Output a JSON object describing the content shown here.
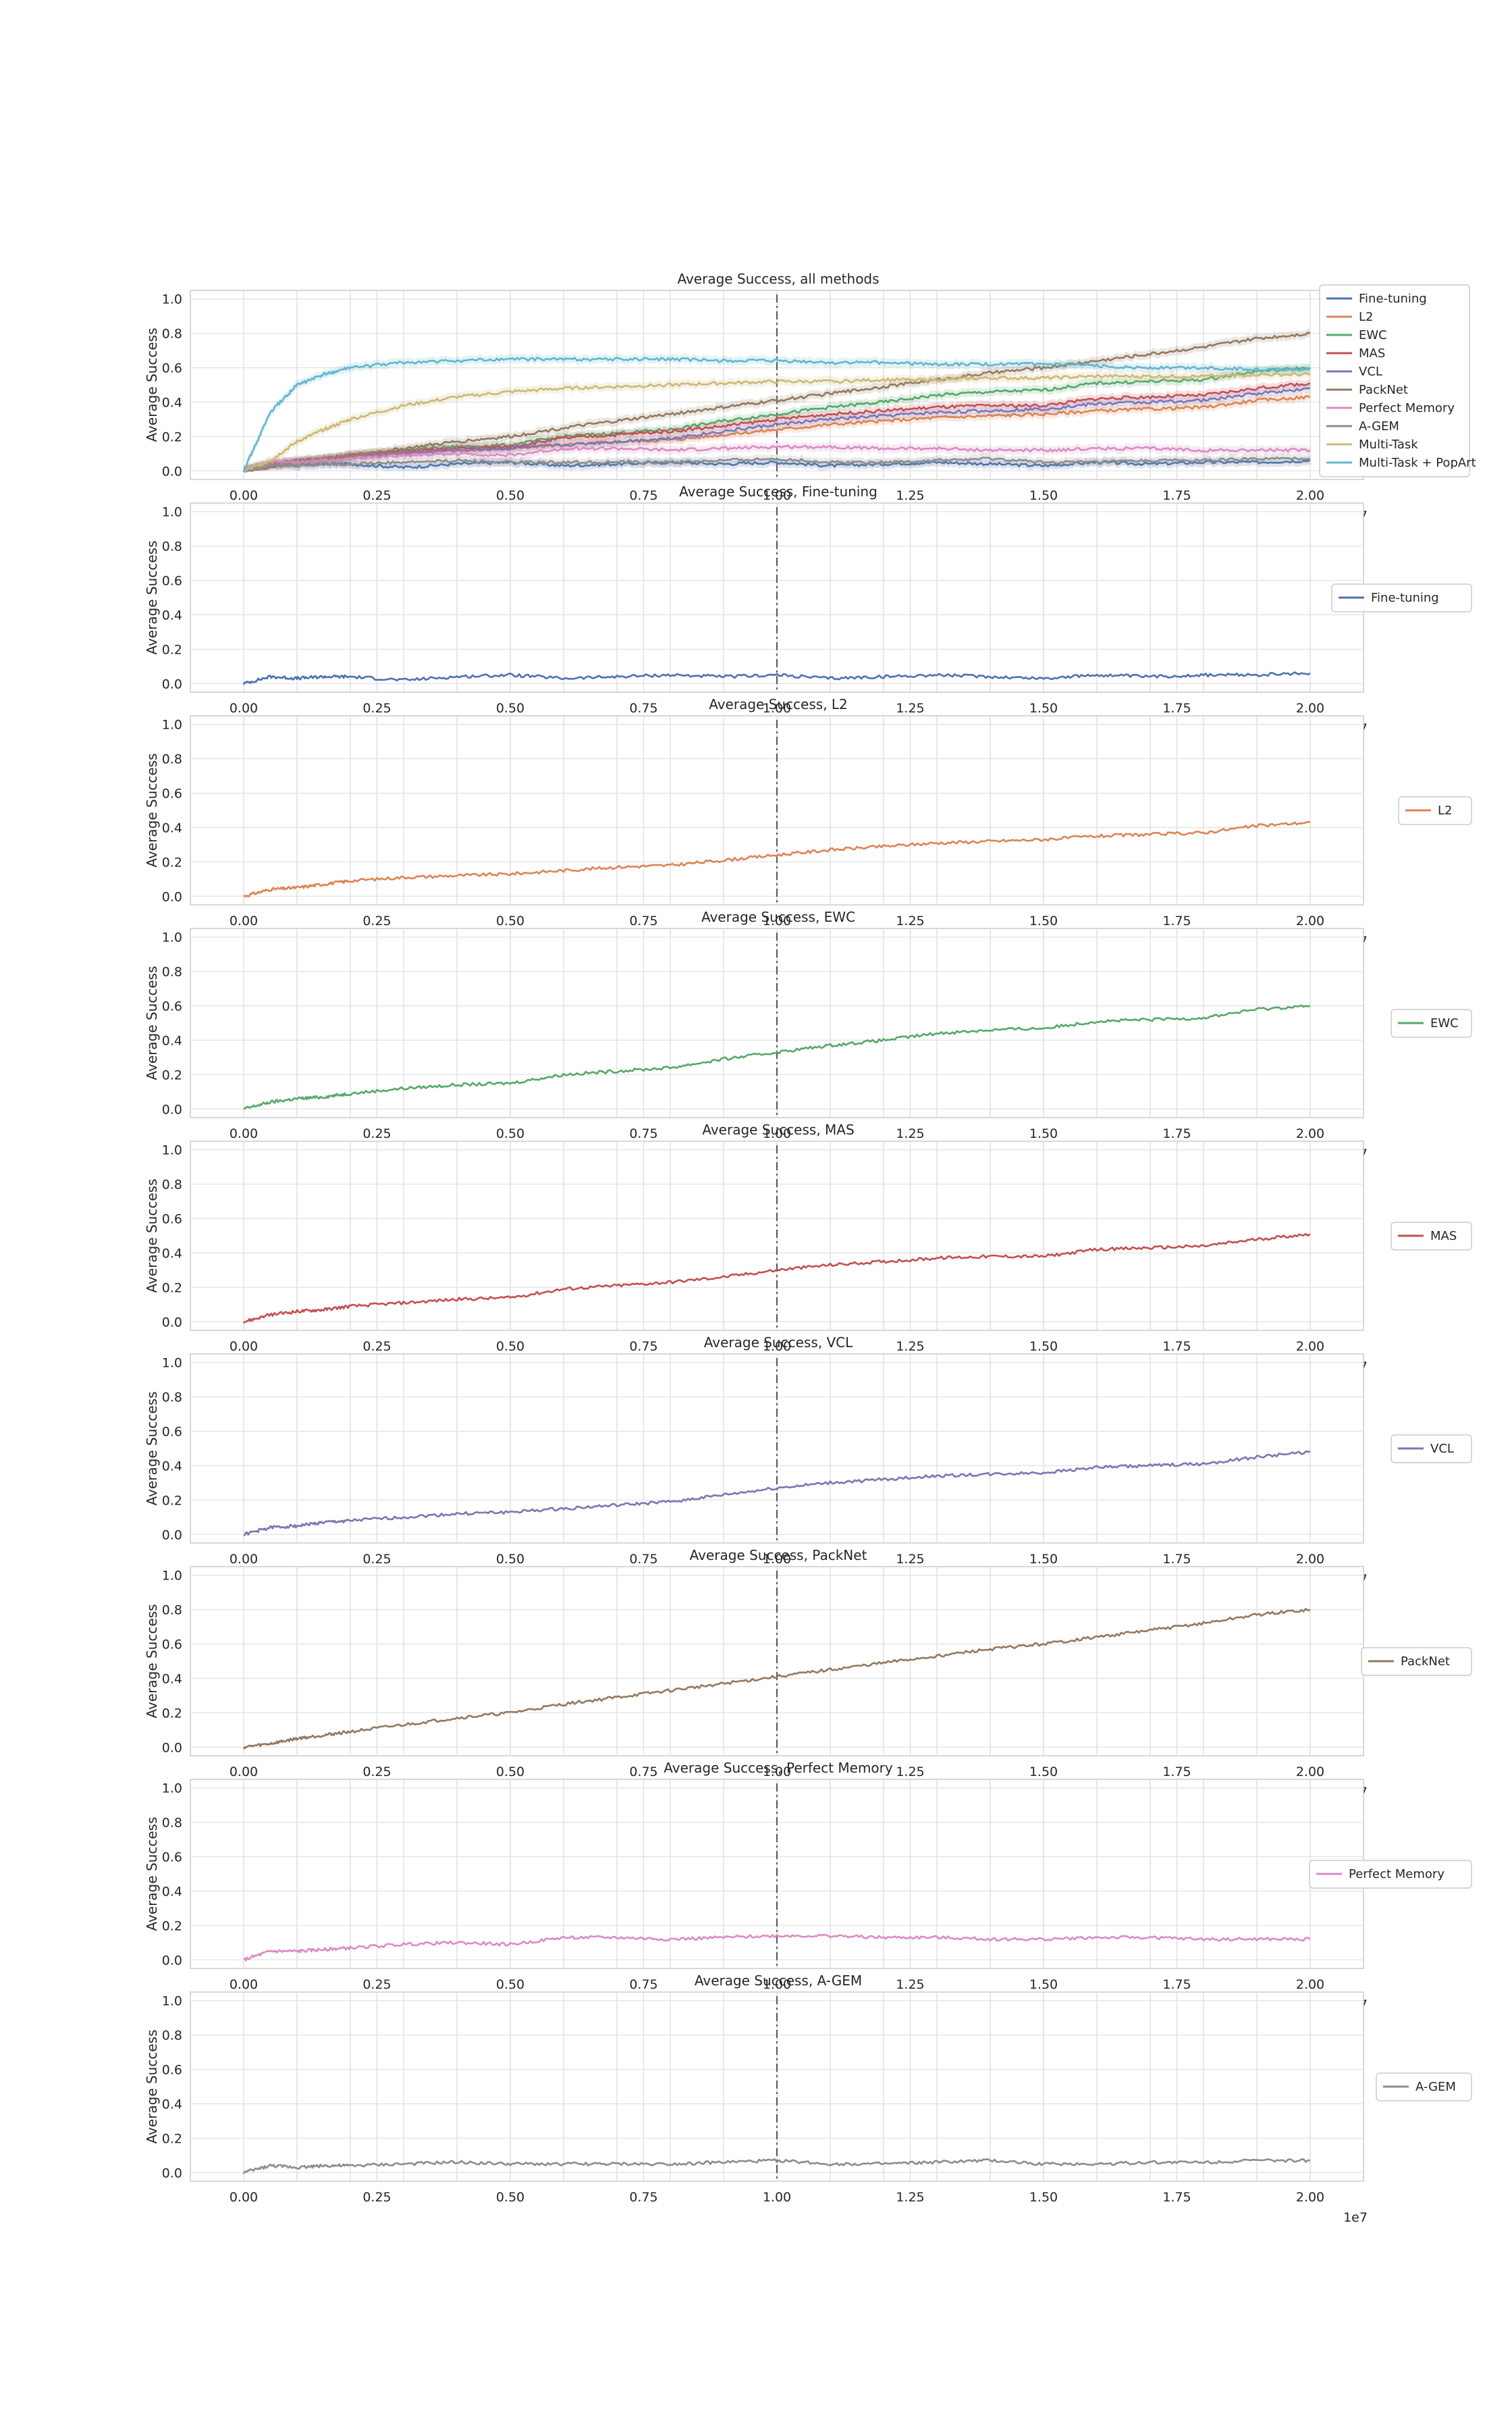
{
  "figure": {
    "multiplier_label": "1e7",
    "ylabel": "Average Success",
    "x_ticks": [
      0,
      0.25,
      0.5,
      0.75,
      1.0,
      1.25,
      1.5,
      1.75,
      2.0
    ],
    "x_tick_labels": [
      "0.00",
      "0.25",
      "0.50",
      "0.75",
      "1.00",
      "1.25",
      "1.50",
      "1.75",
      "2.00"
    ],
    "y_ticks": [
      0,
      0.2,
      0.4,
      0.6,
      0.8,
      1.0
    ],
    "y_tick_labels": [
      "0.0",
      "0.2",
      "0.4",
      "0.6",
      "0.8",
      "1.0"
    ],
    "task_boundaries": [
      0.1,
      0.2,
      0.3,
      0.4,
      0.5,
      0.6,
      0.7,
      0.8,
      0.9,
      1.1,
      1.2,
      1.3,
      1.4,
      1.5,
      1.6,
      1.7,
      1.8,
      1.9
    ],
    "center_marker_x": 1.0,
    "colors": {
      "Fine-tuning": "#4c72b0",
      "L2": "#dd8452",
      "EWC": "#55a868",
      "MAS": "#c44e52",
      "VCL": "#8172b3",
      "PackNet": "#937860",
      "Perfect Memory": "#da8bc3",
      "A-GEM": "#8c8c8c",
      "Multi-Task": "#ccb974",
      "Multi-Task + PopArt": "#64b5cd"
    }
  },
  "chart_data": [
    {
      "type": "line",
      "title": "Average Success, all methods",
      "xlabel": "",
      "ylabel": "Average Success",
      "xlim": [
        -0.1,
        2.1
      ],
      "ylim": [
        -0.05,
        1.05
      ],
      "x_unit": "1e7",
      "legend": "right",
      "x": [
        0,
        0.05,
        0.1,
        0.15,
        0.2,
        0.3,
        0.4,
        0.5,
        0.6,
        0.7,
        0.8,
        0.9,
        1.0,
        1.1,
        1.2,
        1.3,
        1.4,
        1.5,
        1.6,
        1.7,
        1.8,
        1.9,
        2.0
      ],
      "series": [
        {
          "name": "Fine-tuning",
          "values": [
            0,
            0.04,
            0.03,
            0.04,
            0.04,
            0.02,
            0.04,
            0.05,
            0.03,
            0.04,
            0.05,
            0.04,
            0.05,
            0.03,
            0.04,
            0.05,
            0.04,
            0.03,
            0.05,
            0.04,
            0.05,
            0.05,
            0.06
          ]
        },
        {
          "name": "L2",
          "values": [
            0,
            0.04,
            0.05,
            0.07,
            0.09,
            0.11,
            0.12,
            0.13,
            0.15,
            0.17,
            0.18,
            0.21,
            0.24,
            0.27,
            0.29,
            0.31,
            0.32,
            0.33,
            0.35,
            0.36,
            0.37,
            0.41,
            0.43
          ]
        },
        {
          "name": "EWC",
          "values": [
            0,
            0.04,
            0.06,
            0.07,
            0.09,
            0.12,
            0.14,
            0.15,
            0.2,
            0.22,
            0.24,
            0.29,
            0.33,
            0.37,
            0.4,
            0.44,
            0.46,
            0.47,
            0.51,
            0.52,
            0.53,
            0.58,
            0.6
          ]
        },
        {
          "name": "MAS",
          "values": [
            0,
            0.04,
            0.06,
            0.07,
            0.09,
            0.11,
            0.13,
            0.14,
            0.19,
            0.21,
            0.23,
            0.26,
            0.3,
            0.33,
            0.35,
            0.37,
            0.38,
            0.38,
            0.42,
            0.43,
            0.44,
            0.48,
            0.51
          ]
        },
        {
          "name": "VCL",
          "values": [
            0,
            0.04,
            0.05,
            0.07,
            0.08,
            0.1,
            0.12,
            0.13,
            0.15,
            0.17,
            0.19,
            0.23,
            0.27,
            0.3,
            0.32,
            0.34,
            0.35,
            0.36,
            0.39,
            0.4,
            0.41,
            0.45,
            0.48
          ]
        },
        {
          "name": "PackNet",
          "values": [
            0,
            0.02,
            0.05,
            0.07,
            0.09,
            0.13,
            0.17,
            0.2,
            0.25,
            0.29,
            0.33,
            0.37,
            0.41,
            0.45,
            0.49,
            0.53,
            0.57,
            0.6,
            0.64,
            0.68,
            0.72,
            0.77,
            0.8
          ]
        },
        {
          "name": "Perfect Memory",
          "values": [
            0,
            0.05,
            0.05,
            0.06,
            0.07,
            0.09,
            0.1,
            0.09,
            0.13,
            0.13,
            0.12,
            0.13,
            0.14,
            0.14,
            0.13,
            0.13,
            0.12,
            0.12,
            0.13,
            0.13,
            0.12,
            0.12,
            0.12
          ]
        },
        {
          "name": "A-GEM",
          "values": [
            0,
            0.04,
            0.03,
            0.04,
            0.04,
            0.05,
            0.06,
            0.05,
            0.05,
            0.05,
            0.05,
            0.06,
            0.07,
            0.05,
            0.05,
            0.06,
            0.07,
            0.05,
            0.05,
            0.06,
            0.06,
            0.07,
            0.07
          ]
        },
        {
          "name": "Multi-Task",
          "values": [
            0,
            0.06,
            0.17,
            0.24,
            0.3,
            0.38,
            0.43,
            0.46,
            0.48,
            0.49,
            0.5,
            0.51,
            0.52,
            0.52,
            0.53,
            0.53,
            0.54,
            0.54,
            0.55,
            0.55,
            0.55,
            0.56,
            0.56
          ]
        },
        {
          "name": "Multi-Task + PopArt",
          "values": [
            0,
            0.34,
            0.5,
            0.56,
            0.6,
            0.63,
            0.64,
            0.65,
            0.65,
            0.65,
            0.65,
            0.64,
            0.64,
            0.63,
            0.63,
            0.62,
            0.62,
            0.62,
            0.61,
            0.6,
            0.6,
            0.59,
            0.59
          ]
        }
      ]
    },
    {
      "type": "line",
      "title": "Average Success, Fine-tuning",
      "ylabel": "Average Success",
      "xlim": [
        -0.1,
        2.1
      ],
      "ylim": [
        -0.05,
        1.05
      ],
      "legend": "right",
      "x": [
        0,
        0.05,
        0.1,
        0.15,
        0.2,
        0.3,
        0.4,
        0.5,
        0.6,
        0.7,
        0.8,
        0.9,
        1.0,
        1.1,
        1.2,
        1.3,
        1.4,
        1.5,
        1.6,
        1.7,
        1.8,
        1.9,
        2.0
      ],
      "series": [
        {
          "name": "Fine-tuning",
          "values": [
            0,
            0.04,
            0.03,
            0.04,
            0.04,
            0.02,
            0.04,
            0.05,
            0.03,
            0.04,
            0.05,
            0.04,
            0.05,
            0.03,
            0.04,
            0.05,
            0.04,
            0.03,
            0.05,
            0.04,
            0.05,
            0.05,
            0.06
          ]
        }
      ]
    },
    {
      "type": "line",
      "title": "Average Success, L2",
      "ylabel": "Average Success",
      "xlim": [
        -0.1,
        2.1
      ],
      "ylim": [
        -0.05,
        1.05
      ],
      "legend": "right",
      "x": [
        0,
        0.05,
        0.1,
        0.15,
        0.2,
        0.3,
        0.4,
        0.5,
        0.6,
        0.7,
        0.8,
        0.9,
        1.0,
        1.1,
        1.2,
        1.3,
        1.4,
        1.5,
        1.6,
        1.7,
        1.8,
        1.9,
        2.0
      ],
      "series": [
        {
          "name": "L2",
          "values": [
            0,
            0.04,
            0.05,
            0.07,
            0.09,
            0.11,
            0.12,
            0.13,
            0.15,
            0.17,
            0.18,
            0.21,
            0.24,
            0.27,
            0.29,
            0.31,
            0.32,
            0.33,
            0.35,
            0.36,
            0.37,
            0.41,
            0.43
          ]
        }
      ]
    },
    {
      "type": "line",
      "title": "Average Success, EWC",
      "ylabel": "Average Success",
      "xlim": [
        -0.1,
        2.1
      ],
      "ylim": [
        -0.05,
        1.05
      ],
      "legend": "right",
      "x": [
        0,
        0.05,
        0.1,
        0.15,
        0.2,
        0.3,
        0.4,
        0.5,
        0.6,
        0.7,
        0.8,
        0.9,
        1.0,
        1.1,
        1.2,
        1.3,
        1.4,
        1.5,
        1.6,
        1.7,
        1.8,
        1.9,
        2.0
      ],
      "series": [
        {
          "name": "EWC",
          "values": [
            0,
            0.04,
            0.06,
            0.07,
            0.09,
            0.12,
            0.14,
            0.15,
            0.2,
            0.22,
            0.24,
            0.29,
            0.33,
            0.37,
            0.4,
            0.44,
            0.46,
            0.47,
            0.51,
            0.52,
            0.53,
            0.58,
            0.6
          ]
        }
      ]
    },
    {
      "type": "line",
      "title": "Average Success, MAS",
      "ylabel": "Average Success",
      "xlim": [
        -0.1,
        2.1
      ],
      "ylim": [
        -0.05,
        1.05
      ],
      "legend": "right",
      "x": [
        0,
        0.05,
        0.1,
        0.15,
        0.2,
        0.3,
        0.4,
        0.5,
        0.6,
        0.7,
        0.8,
        0.9,
        1.0,
        1.1,
        1.2,
        1.3,
        1.4,
        1.5,
        1.6,
        1.7,
        1.8,
        1.9,
        2.0
      ],
      "series": [
        {
          "name": "MAS",
          "values": [
            0,
            0.04,
            0.06,
            0.07,
            0.09,
            0.11,
            0.13,
            0.14,
            0.19,
            0.21,
            0.23,
            0.26,
            0.3,
            0.33,
            0.35,
            0.37,
            0.38,
            0.38,
            0.42,
            0.43,
            0.44,
            0.48,
            0.51
          ]
        }
      ]
    },
    {
      "type": "line",
      "title": "Average Success, VCL",
      "ylabel": "Average Success",
      "xlim": [
        -0.1,
        2.1
      ],
      "ylim": [
        -0.05,
        1.05
      ],
      "legend": "right",
      "x": [
        0,
        0.05,
        0.1,
        0.15,
        0.2,
        0.3,
        0.4,
        0.5,
        0.6,
        0.7,
        0.8,
        0.9,
        1.0,
        1.1,
        1.2,
        1.3,
        1.4,
        1.5,
        1.6,
        1.7,
        1.8,
        1.9,
        2.0
      ],
      "series": [
        {
          "name": "VCL",
          "values": [
            0,
            0.04,
            0.05,
            0.07,
            0.08,
            0.1,
            0.12,
            0.13,
            0.15,
            0.17,
            0.19,
            0.23,
            0.27,
            0.3,
            0.32,
            0.34,
            0.35,
            0.36,
            0.39,
            0.4,
            0.41,
            0.45,
            0.48
          ]
        }
      ]
    },
    {
      "type": "line",
      "title": "Average Success, PackNet",
      "ylabel": "Average Success",
      "xlim": [
        -0.1,
        2.1
      ],
      "ylim": [
        -0.05,
        1.05
      ],
      "legend": "right",
      "x": [
        0,
        0.05,
        0.1,
        0.15,
        0.2,
        0.3,
        0.4,
        0.5,
        0.6,
        0.7,
        0.8,
        0.9,
        1.0,
        1.1,
        1.2,
        1.3,
        1.4,
        1.5,
        1.6,
        1.7,
        1.8,
        1.9,
        2.0
      ],
      "series": [
        {
          "name": "PackNet",
          "values": [
            0,
            0.02,
            0.05,
            0.07,
            0.09,
            0.13,
            0.17,
            0.2,
            0.25,
            0.29,
            0.33,
            0.37,
            0.41,
            0.45,
            0.49,
            0.53,
            0.57,
            0.6,
            0.64,
            0.68,
            0.72,
            0.77,
            0.8
          ]
        }
      ]
    },
    {
      "type": "line",
      "title": "Average Success, Perfect Memory",
      "ylabel": "Average Success",
      "xlim": [
        -0.1,
        2.1
      ],
      "ylim": [
        -0.05,
        1.05
      ],
      "legend": "right",
      "x": [
        0,
        0.05,
        0.1,
        0.15,
        0.2,
        0.3,
        0.4,
        0.5,
        0.6,
        0.7,
        0.8,
        0.9,
        1.0,
        1.1,
        1.2,
        1.3,
        1.4,
        1.5,
        1.6,
        1.7,
        1.8,
        1.9,
        2.0
      ],
      "series": [
        {
          "name": "Perfect Memory",
          "values": [
            0,
            0.05,
            0.05,
            0.06,
            0.07,
            0.09,
            0.1,
            0.09,
            0.13,
            0.13,
            0.12,
            0.13,
            0.14,
            0.14,
            0.13,
            0.13,
            0.12,
            0.12,
            0.13,
            0.13,
            0.12,
            0.12,
            0.12
          ]
        }
      ]
    },
    {
      "type": "line",
      "title": "Average Success, A-GEM",
      "ylabel": "Average Success",
      "xlim": [
        -0.1,
        2.1
      ],
      "ylim": [
        -0.05,
        1.05
      ],
      "legend": "right",
      "x": [
        0,
        0.05,
        0.1,
        0.15,
        0.2,
        0.3,
        0.4,
        0.5,
        0.6,
        0.7,
        0.8,
        0.9,
        1.0,
        1.1,
        1.2,
        1.3,
        1.4,
        1.5,
        1.6,
        1.7,
        1.8,
        1.9,
        2.0
      ],
      "series": [
        {
          "name": "A-GEM",
          "values": [
            0,
            0.04,
            0.03,
            0.04,
            0.04,
            0.05,
            0.06,
            0.05,
            0.05,
            0.05,
            0.05,
            0.06,
            0.07,
            0.05,
            0.05,
            0.06,
            0.07,
            0.05,
            0.05,
            0.06,
            0.06,
            0.07,
            0.07
          ]
        }
      ]
    }
  ]
}
